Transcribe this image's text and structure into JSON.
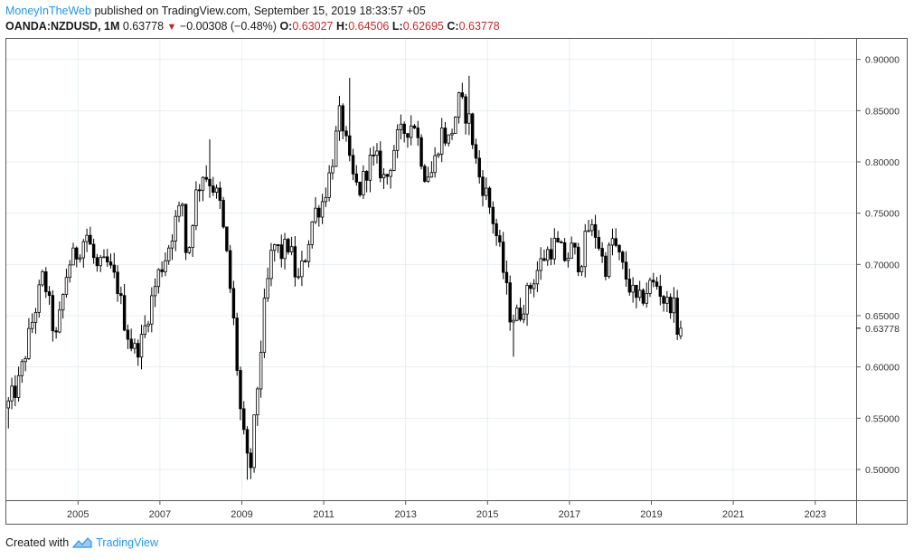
{
  "header": {
    "author": "MoneyInTheWeb",
    "published_text": "published on TradingView.com, September 15, 2019 18:33:57 +05",
    "symbol": "OANDA:NZDUSD, 1M",
    "last_price": "0.63778",
    "change": "−0.00308 (−0.48%)",
    "open_label": "O:",
    "open": "0.63027",
    "high_label": "H:",
    "high": "0.64506",
    "low_label": "L:",
    "low": "0.62695",
    "close_label": "C:",
    "close": "0.63778"
  },
  "footer": {
    "created_with": "Created with",
    "brand": "TradingView"
  },
  "colors": {
    "brand": "#2196f3",
    "down": "#c62828",
    "grid": "#e8eef3",
    "candle": "#000000"
  },
  "chart_data": {
    "type": "candlestick",
    "symbol": "OANDA:NZDUSD",
    "timeframe": "1M",
    "grid": true,
    "price_axis": "right",
    "ylim": [
      0.47,
      0.92
    ],
    "xlim": [
      2003.25,
      2024.0
    ],
    "x_ticks": [
      "2005",
      "2007",
      "2009",
      "2011",
      "2013",
      "2015",
      "2017",
      "2019",
      "2021",
      "2023"
    ],
    "y_ticks": [
      "0.90000",
      "0.85000",
      "0.80000",
      "0.75000",
      "0.70000",
      "0.65000",
      "0.60000",
      "0.55000",
      "0.50000"
    ],
    "last_price_label": "0.63778",
    "anchors": [
      [
        2003.3,
        0.56
      ],
      [
        2003.6,
        0.585
      ],
      [
        2003.9,
        0.64
      ],
      [
        2004.2,
        0.69
      ],
      [
        2004.5,
        0.625
      ],
      [
        2004.8,
        0.7
      ],
      [
        2005.0,
        0.71
      ],
      [
        2005.25,
        0.73
      ],
      [
        2005.5,
        0.695
      ],
      [
        2005.75,
        0.7
      ],
      [
        2006.0,
        0.68
      ],
      [
        2006.2,
        0.64
      ],
      [
        2006.4,
        0.615
      ],
      [
        2006.6,
        0.625
      ],
      [
        2006.8,
        0.66
      ],
      [
        2007.0,
        0.69
      ],
      [
        2007.2,
        0.71
      ],
      [
        2007.4,
        0.74
      ],
      [
        2007.6,
        0.76
      ],
      [
        2007.7,
        0.7
      ],
      [
        2007.9,
        0.765
      ],
      [
        2008.1,
        0.79
      ],
      [
        2008.3,
        0.78
      ],
      [
        2008.5,
        0.76
      ],
      [
        2008.7,
        0.7
      ],
      [
        2008.85,
        0.64
      ],
      [
        2009.0,
        0.56
      ],
      [
        2009.15,
        0.51
      ],
      [
        2009.25,
        0.5
      ],
      [
        2009.4,
        0.57
      ],
      [
        2009.6,
        0.66
      ],
      [
        2009.8,
        0.72
      ],
      [
        2010.0,
        0.71
      ],
      [
        2010.2,
        0.72
      ],
      [
        2010.4,
        0.68
      ],
      [
        2010.6,
        0.71
      ],
      [
        2010.8,
        0.75
      ],
      [
        2011.0,
        0.76
      ],
      [
        2011.2,
        0.79
      ],
      [
        2011.45,
        0.85
      ],
      [
        2011.7,
        0.79
      ],
      [
        2011.9,
        0.77
      ],
      [
        2012.15,
        0.8
      ],
      [
        2012.35,
        0.8
      ],
      [
        2012.55,
        0.78
      ],
      [
        2012.8,
        0.82
      ],
      [
        2013.0,
        0.83
      ],
      [
        2013.25,
        0.84
      ],
      [
        2013.5,
        0.79
      ],
      [
        2013.7,
        0.79
      ],
      [
        2013.9,
        0.83
      ],
      [
        2014.1,
        0.82
      ],
      [
        2014.35,
        0.86
      ],
      [
        2014.6,
        0.84
      ],
      [
        2014.8,
        0.79
      ],
      [
        2015.0,
        0.77
      ],
      [
        2015.2,
        0.74
      ],
      [
        2015.4,
        0.7
      ],
      [
        2015.6,
        0.65
      ],
      [
        2015.8,
        0.65
      ],
      [
        2016.0,
        0.67
      ],
      [
        2016.2,
        0.69
      ],
      [
        2016.45,
        0.71
      ],
      [
        2016.7,
        0.72
      ],
      [
        2016.95,
        0.705
      ],
      [
        2017.1,
        0.715
      ],
      [
        2017.3,
        0.7
      ],
      [
        2017.5,
        0.735
      ],
      [
        2017.7,
        0.73
      ],
      [
        2017.9,
        0.695
      ],
      [
        2018.1,
        0.725
      ],
      [
        2018.3,
        0.7
      ],
      [
        2018.5,
        0.68
      ],
      [
        2018.7,
        0.66
      ],
      [
        2018.85,
        0.67
      ],
      [
        2019.0,
        0.68
      ],
      [
        2019.2,
        0.68
      ],
      [
        2019.4,
        0.66
      ],
      [
        2019.55,
        0.665
      ],
      [
        2019.68,
        0.638
      ]
    ],
    "extremes": [
      [
        2009.1,
        0.49,
        "low"
      ],
      [
        2011.6,
        0.882,
        "high"
      ],
      [
        2014.55,
        0.884,
        "high"
      ],
      [
        2015.6,
        0.61,
        "low"
      ],
      [
        2003.3,
        0.54,
        "low"
      ],
      [
        2008.2,
        0.822,
        "high"
      ]
    ],
    "last_candle": {
      "open": 0.63027,
      "high": 0.64506,
      "low": 0.62695,
      "close": 0.63778
    }
  }
}
